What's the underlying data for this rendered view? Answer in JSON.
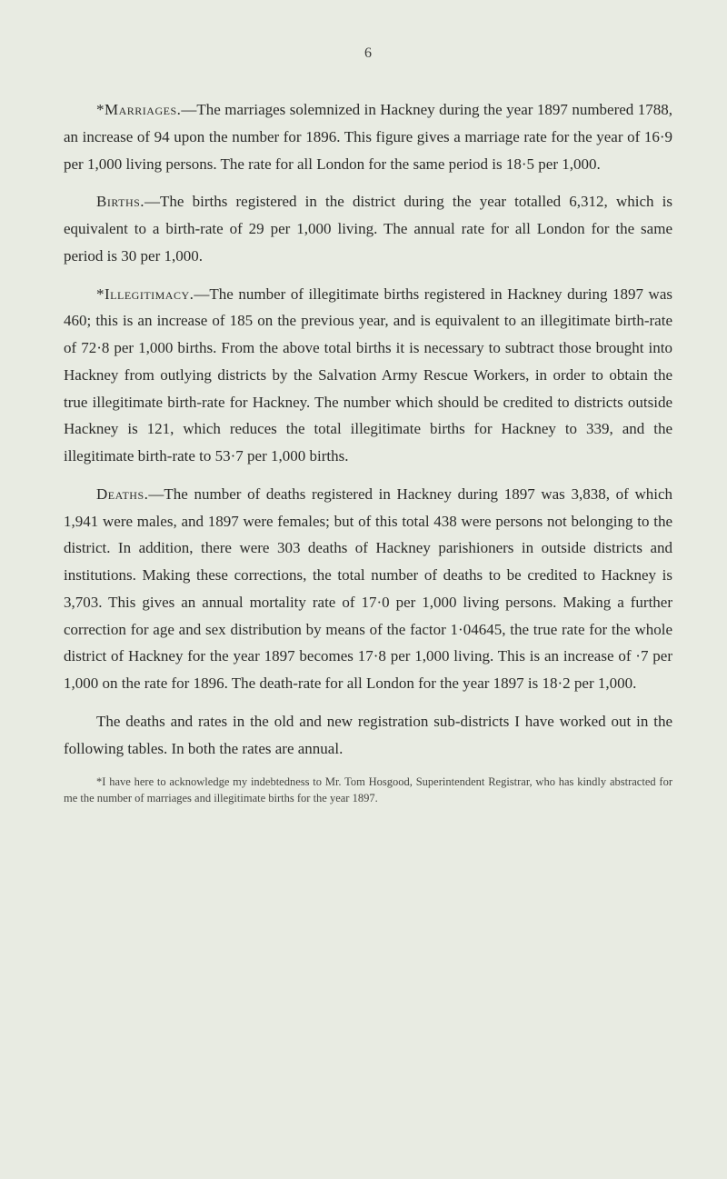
{
  "page": {
    "number": "6",
    "background_color": "#e8ebe2",
    "text_color": "#2a2a28",
    "font_family": "Georgia, 'Times New Roman', serif",
    "body_fontsize": 17,
    "line_height": 1.75
  },
  "paragraphs": {
    "marriages": {
      "heading": "*Marriages.",
      "text": "—The marriages solemnized in Hackney during the year 1897 numbered 1788, an increase of 94 upon the number for 1896. This figure gives a marriage rate for the year of 16·9 per 1,000 living persons. The rate for all London for the same period is 18·5 per 1,000."
    },
    "births": {
      "heading": "Births.",
      "text": "—The births registered in the district during the year totalled 6,312, which is equivalent to a birth-rate of 29 per 1,000 living. The annual rate for all London for the same period is 30 per 1,000."
    },
    "illegitimacy": {
      "heading": "*Illegitimacy.",
      "text": "—The number of illegitimate births registered in Hackney during 1897 was 460; this is an increase of 185 on the previous year, and is equivalent to an illegitimate birth-rate of 72·8 per 1,000 births. From the above total births it is necessary to subtract those brought into Hackney from outlying districts by the Salvation Army Rescue Workers, in order to obtain the true illegitimate birth-rate for Hackney. The number which should be credited to districts outside Hackney is 121, which reduces the total illegitimate births for Hackney to 339, and the illegitimate birth-rate to 53·7 per 1,000 births."
    },
    "deaths": {
      "heading": "Deaths.",
      "text": "—The number of deaths registered in Hackney during 1897 was 3,838, of which 1,941 were males, and 1897 were females; but of this total 438 were persons not belonging to the district. In addition, there were 303 deaths of Hackney parishioners in outside districts and institutions. Making these corrections, the total number of deaths to be credited to Hackney is 3,703. This gives an annual mortality rate of 17·0 per 1,000 living persons. Making a further correction for age and sex distribution by means of the factor 1·04645, the true rate for the whole district of Hackney for the year 1897 becomes 17·8 per 1,000 living. This is an increase of ·7 per 1,000 on the rate for 1896. The death-rate for all London for the year 1897 is 18·2 per 1,000."
    },
    "closing": {
      "text": "The deaths and rates in the old and new registration sub-districts I have worked out in the following tables. In both the rates are annual."
    }
  },
  "footnote": {
    "text": "*I have here to acknowledge my indebtedness to Mr. Tom Hosgood, Superintendent Registrar, who has kindly abstracted for me the number of marriages and illegitimate births for the year 1897."
  }
}
